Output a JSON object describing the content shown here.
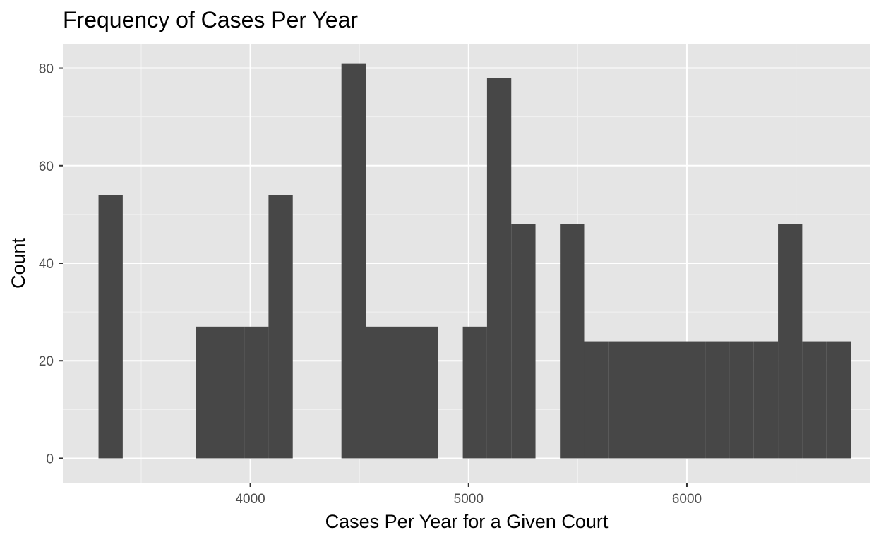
{
  "chart_data": {
    "type": "bar",
    "title": "Frequency of Cases Per Year",
    "xlabel": "Cases Per Year for a Given Court",
    "ylabel": "Count",
    "xlim": [
      3141,
      6841
    ],
    "ylim": [
      -5,
      85
    ],
    "x_ticks": [
      4000,
      5000,
      6000
    ],
    "x_minor_ticks": [
      3500,
      4500,
      5500,
      6500
    ],
    "y_ticks": [
      0,
      20,
      40,
      60,
      80
    ],
    "y_minor_ticks": [
      10,
      30,
      50,
      70
    ],
    "bin_width": 111,
    "grid": true,
    "legend": "none",
    "bars": [
      {
        "x": 3360,
        "count": 54
      },
      {
        "x": 3806,
        "count": 27
      },
      {
        "x": 3917,
        "count": 27
      },
      {
        "x": 4028,
        "count": 27
      },
      {
        "x": 4139,
        "count": 54
      },
      {
        "x": 4473,
        "count": 81
      },
      {
        "x": 4584,
        "count": 27
      },
      {
        "x": 4695,
        "count": 27
      },
      {
        "x": 4806,
        "count": 27
      },
      {
        "x": 5029,
        "count": 27
      },
      {
        "x": 5140,
        "count": 78
      },
      {
        "x": 5251,
        "count": 48
      },
      {
        "x": 5474,
        "count": 48
      },
      {
        "x": 5585,
        "count": 24
      },
      {
        "x": 5696,
        "count": 24
      },
      {
        "x": 5807,
        "count": 24
      },
      {
        "x": 5918,
        "count": 24
      },
      {
        "x": 6029,
        "count": 24
      },
      {
        "x": 6140,
        "count": 24
      },
      {
        "x": 6251,
        "count": 24
      },
      {
        "x": 6362,
        "count": 24
      },
      {
        "x": 6473,
        "count": 48
      },
      {
        "x": 6584,
        "count": 24
      },
      {
        "x": 6695,
        "count": 24
      }
    ],
    "colors": {
      "bar": "#474747",
      "panel": "#e5e5e5",
      "major_grid": "#ffffff",
      "minor_grid": "#f2f2f2",
      "tick": "#333333"
    }
  }
}
